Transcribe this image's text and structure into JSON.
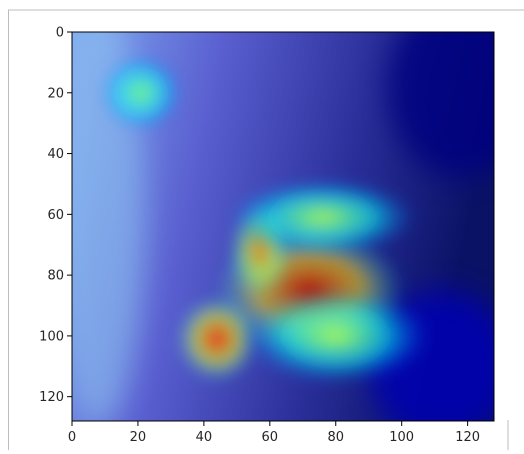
{
  "chart_data": {
    "type": "heatmap",
    "image_size": [
      128,
      128
    ],
    "xlim": [
      0,
      128
    ],
    "ylim": [
      128,
      0
    ],
    "x_ticks": [
      0,
      20,
      40,
      60,
      80,
      100,
      120
    ],
    "y_ticks": [
      0,
      20,
      40,
      60,
      80,
      100,
      120
    ],
    "x_tick_labels": [
      "0",
      "20",
      "40",
      "60",
      "80",
      "100",
      "120"
    ],
    "y_tick_labels": [
      "0",
      "20",
      "40",
      "60",
      "80",
      "100",
      "120"
    ],
    "colormap": "jet",
    "background_tint": "#5a5fd0",
    "hotspots": [
      {
        "x": 72,
        "y": 85,
        "rx": 18,
        "ry": 13,
        "level": 0.95
      },
      {
        "x": 44,
        "y": 101,
        "rx": 8,
        "ry": 9,
        "level": 0.85
      },
      {
        "x": 57,
        "y": 72,
        "rx": 6,
        "ry": 10,
        "level": 0.75
      },
      {
        "x": 76,
        "y": 61,
        "rx": 18,
        "ry": 8,
        "level": 0.55
      },
      {
        "x": 21,
        "y": 20,
        "rx": 8,
        "ry": 8,
        "level": 0.5
      },
      {
        "x": 80,
        "y": 100,
        "rx": 18,
        "ry": 10,
        "level": 0.55
      }
    ],
    "cold_regions": [
      {
        "x": 118,
        "y": 18,
        "rx": 22,
        "ry": 30,
        "level": 0.0
      },
      {
        "x": 112,
        "y": 110,
        "rx": 22,
        "ry": 25,
        "level": 0.05
      }
    ]
  }
}
